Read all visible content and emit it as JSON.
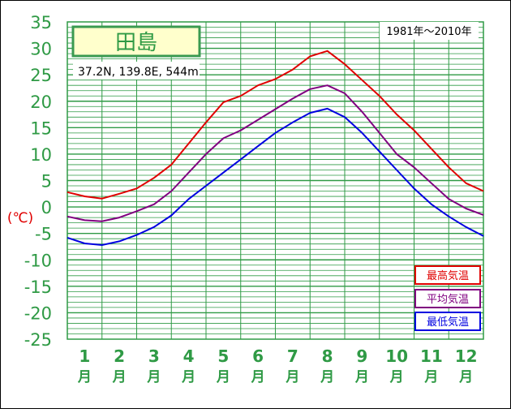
{
  "chart_data": {
    "type": "line",
    "title": "田島",
    "station_info": "37.2N,  139.8E,  544m",
    "period": "1981年〜2010年",
    "ylabel": "(℃)",
    "ylim": [
      -25,
      35
    ],
    "y_ticks": [
      "35",
      "30",
      "25",
      "20",
      "15",
      "10",
      "5",
      "0",
      "-5",
      "-10",
      "-15",
      "-20",
      "-25"
    ],
    "x_month_numbers": [
      "1",
      "2",
      "3",
      "4",
      "5",
      "6",
      "7",
      "8",
      "9",
      "10",
      "11",
      "12"
    ],
    "x_month_unit": "月",
    "grid": true,
    "legend_position": "bottom-right",
    "series": [
      {
        "name": "最高気温",
        "color": "#e00000",
        "x": [
          0,
          0.5,
          1,
          1.5,
          2,
          2.5,
          3,
          3.5,
          4,
          4.5,
          5,
          5.5,
          6,
          6.5,
          7,
          7.5,
          8,
          8.5,
          9,
          9.5,
          10,
          10.5,
          11,
          11.5,
          12
        ],
        "values": [
          2.8,
          2.0,
          1.6,
          2.5,
          3.5,
          5.5,
          8.0,
          12.0,
          16.0,
          19.8,
          21.0,
          23.0,
          24.2,
          26.0,
          28.5,
          29.5,
          27.0,
          24.0,
          21.0,
          17.5,
          14.5,
          11.0,
          7.5,
          4.5,
          3.0
        ]
      },
      {
        "name": "平均気温",
        "color": "#800080",
        "x": [
          0,
          0.5,
          1,
          1.5,
          2,
          2.5,
          3,
          3.5,
          4,
          4.5,
          5,
          5.5,
          6,
          6.5,
          7,
          7.5,
          8,
          8.5,
          9,
          9.5,
          10,
          10.5,
          11,
          11.5,
          12
        ],
        "values": [
          -1.8,
          -2.5,
          -2.7,
          -2.0,
          -0.8,
          0.5,
          3.0,
          6.5,
          10.0,
          13.0,
          14.5,
          16.5,
          18.5,
          20.5,
          22.3,
          23.0,
          21.5,
          18.0,
          14.0,
          10.0,
          7.5,
          4.5,
          1.5,
          -0.3,
          -1.5
        ]
      },
      {
        "name": "最低気温",
        "color": "#0000e0",
        "x": [
          0,
          0.5,
          1,
          1.5,
          2,
          2.5,
          3,
          3.5,
          4,
          4.5,
          5,
          5.5,
          6,
          6.5,
          7,
          7.5,
          8,
          8.5,
          9,
          9.5,
          10,
          10.5,
          11,
          11.5,
          12
        ],
        "values": [
          -5.8,
          -6.9,
          -7.2,
          -6.5,
          -5.3,
          -3.8,
          -1.6,
          1.5,
          4.0,
          6.5,
          9.0,
          11.5,
          14.0,
          16.0,
          17.8,
          18.6,
          17.0,
          14.0,
          10.5,
          7.0,
          3.5,
          0.5,
          -1.8,
          -3.8,
          -5.5
        ]
      }
    ]
  }
}
